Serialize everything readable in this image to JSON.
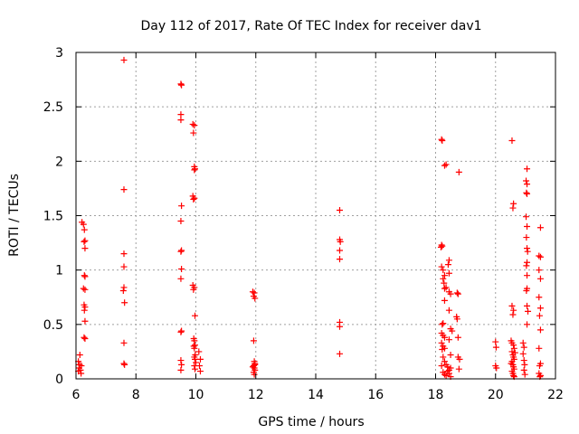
{
  "chart_data": {
    "type": "scatter",
    "title": "Day 112 of 2017, Rate Of TEC Index for receiver dav1",
    "xlabel": "GPS time / hours",
    "ylabel": "ROTI / TECUs",
    "xlim": [
      6,
      22
    ],
    "ylim": [
      0,
      3
    ],
    "x_ticks": [
      6,
      8,
      10,
      12,
      14,
      16,
      18,
      20,
      22
    ],
    "x_tick_labels": [
      "6",
      "8",
      "10",
      "12",
      "14",
      "16",
      "18",
      "20",
      "22"
    ],
    "y_ticks": [
      0,
      0.5,
      1,
      1.5,
      2,
      2.5,
      3
    ],
    "y_tick_labels": [
      "0",
      "0.5",
      "1",
      "1.5",
      "2",
      "2.5",
      "3"
    ],
    "grid": true,
    "marker": "+",
    "series": [
      {
        "name": "dav1",
        "color": "#ff0000",
        "points": [
          [
            6.08,
            0.07
          ],
          [
            6.1,
            0.1
          ],
          [
            6.12,
            0.13
          ],
          [
            6.08,
            0.16
          ],
          [
            6.15,
            0.08
          ],
          [
            6.13,
            0.22
          ],
          [
            6.17,
            0.05
          ],
          [
            6.18,
            0.12
          ],
          [
            6.2,
            1.44
          ],
          [
            6.25,
            1.42
          ],
          [
            6.28,
            1.37
          ],
          [
            6.3,
            1.27
          ],
          [
            6.27,
            1.26
          ],
          [
            6.3,
            1.2
          ],
          [
            6.28,
            0.95
          ],
          [
            6.3,
            0.94
          ],
          [
            6.25,
            0.83
          ],
          [
            6.3,
            0.82
          ],
          [
            6.27,
            0.68
          ],
          [
            6.3,
            0.66
          ],
          [
            6.28,
            0.63
          ],
          [
            6.3,
            0.53
          ],
          [
            6.27,
            0.38
          ],
          [
            6.3,
            0.37
          ],
          [
            7.6,
            2.93
          ],
          [
            7.6,
            1.74
          ],
          [
            7.6,
            1.15
          ],
          [
            7.6,
            1.03
          ],
          [
            7.6,
            0.84
          ],
          [
            7.58,
            0.81
          ],
          [
            7.62,
            0.7
          ],
          [
            7.6,
            0.33
          ],
          [
            7.6,
            0.14
          ],
          [
            7.62,
            0.13
          ],
          [
            9.5,
            2.71
          ],
          [
            9.52,
            2.7
          ],
          [
            9.5,
            2.43
          ],
          [
            9.5,
            2.38
          ],
          [
            9.52,
            1.59
          ],
          [
            9.5,
            1.45
          ],
          [
            9.52,
            1.18
          ],
          [
            9.5,
            1.17
          ],
          [
            9.52,
            1.01
          ],
          [
            9.5,
            0.92
          ],
          [
            9.52,
            0.44
          ],
          [
            9.5,
            0.43
          ],
          [
            9.5,
            0.17
          ],
          [
            9.52,
            0.13
          ],
          [
            9.5,
            0.08
          ],
          [
            9.9,
            2.34
          ],
          [
            9.95,
            2.33
          ],
          [
            9.92,
            2.26
          ],
          [
            9.95,
            1.95
          ],
          [
            9.97,
            1.93
          ],
          [
            9.95,
            1.92
          ],
          [
            9.9,
            1.68
          ],
          [
            9.95,
            1.66
          ],
          [
            9.92,
            1.65
          ],
          [
            9.9,
            0.86
          ],
          [
            9.95,
            0.84
          ],
          [
            9.92,
            0.82
          ],
          [
            9.97,
            0.58
          ],
          [
            9.93,
            0.37
          ],
          [
            9.95,
            0.35
          ],
          [
            9.97,
            0.31
          ],
          [
            9.93,
            0.3
          ],
          [
            9.95,
            0.28
          ],
          [
            9.98,
            0.22
          ],
          [
            9.95,
            0.2
          ],
          [
            9.97,
            0.18
          ],
          [
            10.0,
            0.15
          ],
          [
            9.95,
            0.12
          ],
          [
            9.97,
            0.09
          ],
          [
            10.1,
            0.25
          ],
          [
            10.15,
            0.18
          ],
          [
            10.12,
            0.12
          ],
          [
            10.15,
            0.07
          ],
          [
            11.9,
            0.8
          ],
          [
            11.95,
            0.79
          ],
          [
            11.93,
            0.76
          ],
          [
            11.97,
            0.74
          ],
          [
            11.93,
            0.35
          ],
          [
            11.95,
            0.16
          ],
          [
            11.97,
            0.14
          ],
          [
            11.93,
            0.12
          ],
          [
            11.95,
            0.1
          ],
          [
            11.97,
            0.08
          ],
          [
            11.93,
            0.06
          ],
          [
            11.95,
            0.04
          ],
          [
            11.97,
            0.13
          ],
          [
            11.9,
            0.11
          ],
          [
            14.8,
            1.55
          ],
          [
            14.8,
            1.28
          ],
          [
            14.82,
            1.26
          ],
          [
            14.8,
            1.18
          ],
          [
            14.8,
            1.1
          ],
          [
            14.8,
            0.52
          ],
          [
            14.8,
            0.48
          ],
          [
            14.8,
            0.23
          ],
          [
            18.2,
            2.2
          ],
          [
            18.22,
            2.19
          ],
          [
            18.35,
            1.97
          ],
          [
            18.3,
            1.96
          ],
          [
            18.78,
            1.9
          ],
          [
            18.2,
            1.23
          ],
          [
            18.22,
            1.22
          ],
          [
            18.18,
            1.21
          ],
          [
            18.45,
            1.09
          ],
          [
            18.42,
            1.05
          ],
          [
            18.2,
            1.03
          ],
          [
            18.25,
            1.0
          ],
          [
            18.45,
            0.97
          ],
          [
            18.3,
            0.95
          ],
          [
            18.25,
            0.92
          ],
          [
            18.28,
            0.88
          ],
          [
            18.35,
            0.84
          ],
          [
            18.3,
            0.83
          ],
          [
            18.45,
            0.8
          ],
          [
            18.5,
            0.78
          ],
          [
            18.72,
            0.79
          ],
          [
            18.75,
            0.78
          ],
          [
            18.3,
            0.72
          ],
          [
            18.45,
            0.63
          ],
          [
            18.7,
            0.57
          ],
          [
            18.72,
            0.55
          ],
          [
            18.25,
            0.51
          ],
          [
            18.22,
            0.5
          ],
          [
            18.5,
            0.46
          ],
          [
            18.55,
            0.44
          ],
          [
            18.2,
            0.42
          ],
          [
            18.25,
            0.4
          ],
          [
            18.3,
            0.38
          ],
          [
            18.45,
            0.36
          ],
          [
            18.75,
            0.38
          ],
          [
            18.2,
            0.33
          ],
          [
            18.25,
            0.3
          ],
          [
            18.3,
            0.28
          ],
          [
            18.22,
            0.27
          ],
          [
            18.5,
            0.22
          ],
          [
            18.75,
            0.2
          ],
          [
            18.8,
            0.18
          ],
          [
            18.25,
            0.2
          ],
          [
            18.3,
            0.16
          ],
          [
            18.35,
            0.13
          ],
          [
            18.4,
            0.11
          ],
          [
            18.45,
            0.08
          ],
          [
            18.25,
            0.06
          ],
          [
            18.3,
            0.04
          ],
          [
            18.35,
            0.03
          ],
          [
            18.4,
            0.07
          ],
          [
            18.45,
            0.05
          ],
          [
            18.5,
            0.1
          ],
          [
            18.78,
            0.09
          ],
          [
            18.2,
            0.12
          ],
          [
            18.5,
            0.02
          ],
          [
            20.0,
            0.34
          ],
          [
            20.02,
            0.29
          ],
          [
            20.0,
            0.12
          ],
          [
            20.03,
            0.1
          ],
          [
            20.55,
            2.19
          ],
          [
            20.6,
            1.61
          ],
          [
            20.58,
            1.57
          ],
          [
            20.55,
            0.67
          ],
          [
            20.6,
            0.63
          ],
          [
            20.58,
            0.59
          ],
          [
            20.52,
            0.35
          ],
          [
            20.55,
            0.33
          ],
          [
            20.6,
            0.31
          ],
          [
            20.62,
            0.28
          ],
          [
            20.55,
            0.25
          ],
          [
            20.58,
            0.22
          ],
          [
            20.6,
            0.2
          ],
          [
            20.62,
            0.18
          ],
          [
            20.55,
            0.16
          ],
          [
            20.58,
            0.13
          ],
          [
            20.6,
            0.11
          ],
          [
            20.62,
            0.09
          ],
          [
            20.55,
            0.07
          ],
          [
            20.58,
            0.05
          ],
          [
            20.6,
            0.03
          ],
          [
            20.62,
            0.02
          ],
          [
            20.52,
            0.14
          ],
          [
            20.65,
            0.24
          ],
          [
            20.92,
            0.33
          ],
          [
            20.95,
            0.29
          ],
          [
            20.92,
            0.23
          ],
          [
            20.95,
            0.17
          ],
          [
            20.97,
            0.13
          ],
          [
            20.95,
            0.08
          ],
          [
            20.98,
            0.04
          ],
          [
            21.05,
            1.93
          ],
          [
            21.02,
            1.82
          ],
          [
            21.05,
            1.79
          ],
          [
            21.03,
            1.71
          ],
          [
            21.05,
            1.7
          ],
          [
            21.02,
            1.49
          ],
          [
            21.05,
            1.4
          ],
          [
            21.03,
            1.3
          ],
          [
            21.05,
            1.2
          ],
          [
            21.07,
            1.17
          ],
          [
            21.05,
            1.07
          ],
          [
            21.03,
            1.04
          ],
          [
            21.05,
            0.95
          ],
          [
            21.05,
            0.83
          ],
          [
            21.03,
            0.81
          ],
          [
            21.05,
            0.67
          ],
          [
            21.08,
            0.62
          ],
          [
            21.05,
            0.5
          ],
          [
            21.5,
            1.39
          ],
          [
            21.45,
            1.13
          ],
          [
            21.5,
            1.12
          ],
          [
            21.45,
            1.0
          ],
          [
            21.5,
            0.92
          ],
          [
            21.45,
            0.75
          ],
          [
            21.5,
            0.65
          ],
          [
            21.47,
            0.58
          ],
          [
            21.5,
            0.45
          ],
          [
            21.45,
            0.28
          ],
          [
            21.5,
            0.14
          ],
          [
            21.47,
            0.12
          ],
          [
            21.45,
            0.05
          ],
          [
            21.5,
            0.03
          ],
          [
            21.48,
            0.02
          ]
        ]
      }
    ]
  }
}
